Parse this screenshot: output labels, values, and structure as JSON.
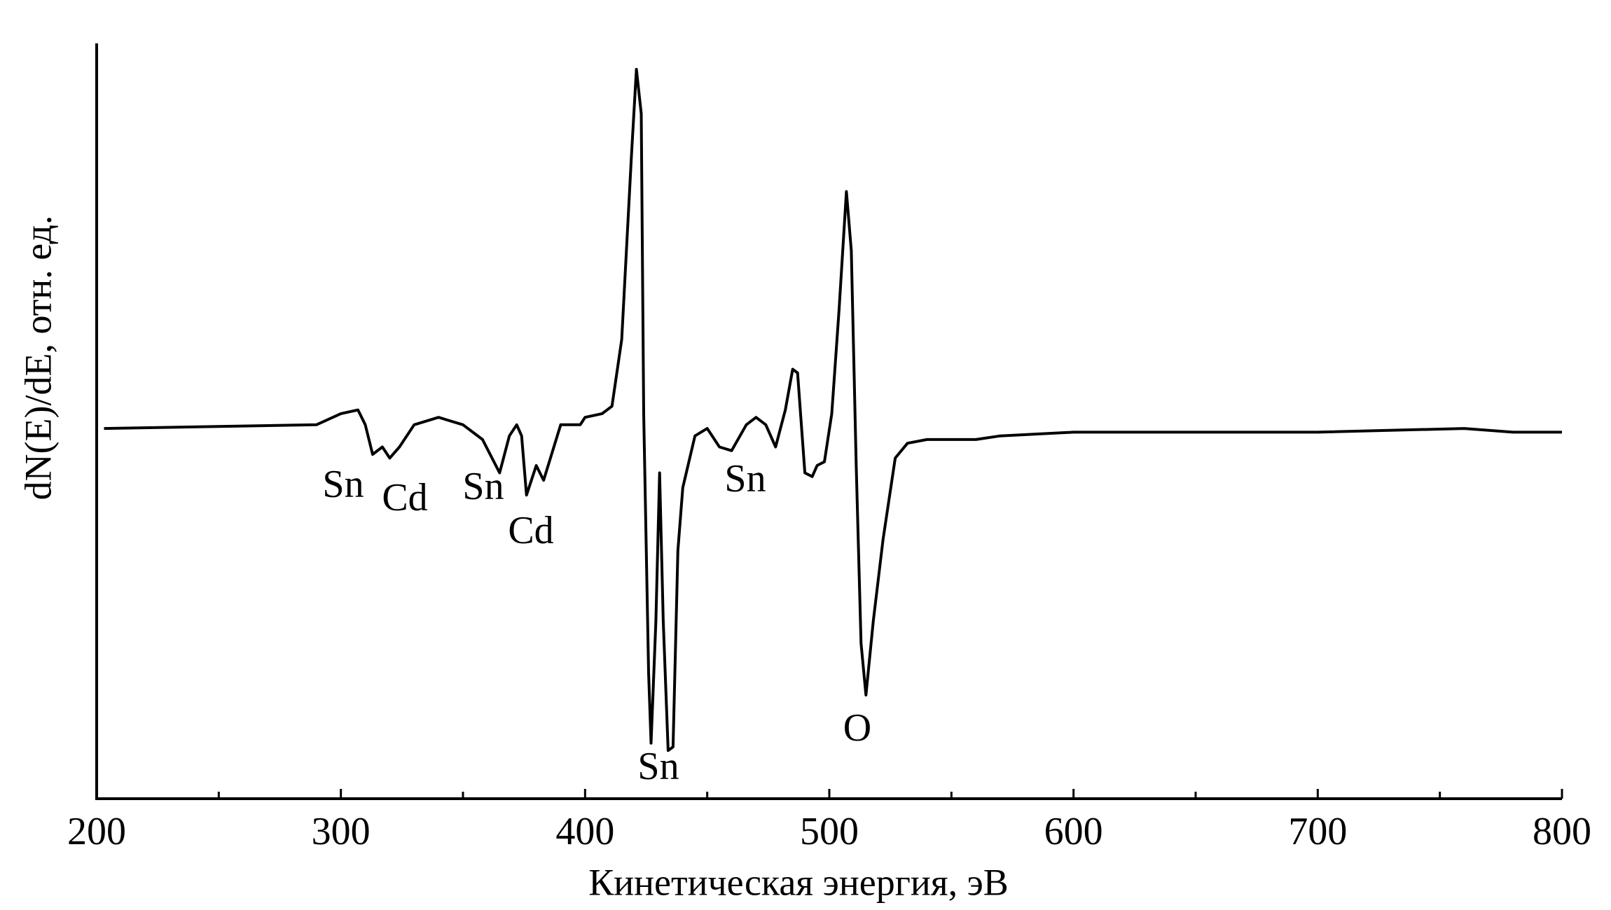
{
  "chart_data": {
    "type": "line",
    "x_label": "Кинетическая энергия, эВ",
    "y_label": "dN(E)/dE, отн. ед.",
    "xlim": [
      200,
      800
    ],
    "xticks": [
      200,
      300,
      400,
      500,
      600,
      700,
      800
    ],
    "xminorticks": [
      250,
      350,
      450,
      550,
      650,
      750
    ],
    "ylim": [
      -1,
      1.04
    ],
    "color": "#000000",
    "x": [
      203,
      290,
      300,
      307,
      310,
      313,
      317,
      320,
      324,
      330,
      340,
      350,
      358,
      365,
      369,
      372,
      374,
      376,
      380,
      383,
      390,
      398,
      400,
      407,
      411,
      415,
      419,
      421,
      423,
      424,
      426,
      427,
      429,
      430.5,
      432,
      434,
      436,
      438,
      440,
      445,
      450,
      455,
      460,
      466,
      470,
      474,
      478,
      482,
      485,
      487,
      490,
      493,
      495,
      498,
      501,
      504,
      507,
      509,
      511,
      513,
      515,
      518,
      522,
      527,
      532,
      540,
      560,
      570,
      600,
      650,
      700,
      760,
      780,
      800
    ],
    "values": [
      0,
      0.01,
      0.04,
      0.05,
      0.01,
      -0.07,
      -0.05,
      -0.08,
      -0.05,
      0.01,
      0.03,
      0.01,
      -0.03,
      -0.12,
      -0.02,
      0.01,
      -0.02,
      -0.18,
      -0.1,
      -0.14,
      0.01,
      0.01,
      0.03,
      0.04,
      0.06,
      0.24,
      0.74,
      0.97,
      0.85,
      0.04,
      -0.66,
      -0.85,
      -0.52,
      -0.12,
      -0.52,
      -0.87,
      -0.86,
      -0.33,
      -0.16,
      -0.02,
      0,
      -0.05,
      -0.06,
      0.01,
      0.03,
      0.01,
      -0.05,
      0.05,
      0.16,
      0.15,
      -0.12,
      -0.13,
      -0.1,
      -0.09,
      0.04,
      0.32,
      0.64,
      0.48,
      -0.1,
      -0.58,
      -0.72,
      -0.52,
      -0.3,
      -0.08,
      -0.04,
      -0.03,
      -0.03,
      -0.02,
      -0.01,
      -0.01,
      -0.01,
      0,
      -0.01,
      -0.01
    ],
    "annotations": [
      "Sn",
      "Cd",
      "Sn",
      "Cd",
      "Sn",
      "Sn",
      "O"
    ]
  }
}
